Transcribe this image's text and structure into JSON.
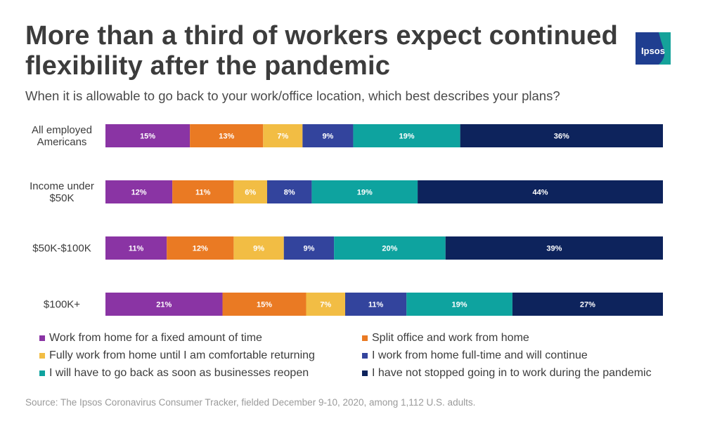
{
  "title": "More than a third of workers expect continued flexibility after the pandemic",
  "subtitle": "When it is allowable to go back to your work/office location, which best describes your plans?",
  "logo_text": "Ipsos",
  "source": "Source: The Ipsos Coronavirus Consumer Tracker, fielded December 9-10, 2020, among 1,112 U.S. adults.",
  "colors": {
    "work_fixed": "#8a34a4",
    "split": "#ea7a23",
    "fully_until": "#f2bd44",
    "fulltime_continue": "#33449d",
    "go_back": "#0ea39f",
    "not_stopped": "#0d235c",
    "logo": "#1f3e90",
    "logo_accent": "#15a29a"
  },
  "chart_data": {
    "type": "bar",
    "orientation": "horizontal",
    "stacked": true,
    "categories": [
      "All employed Americans",
      "Income under $50K",
      "$50K-$100K",
      "$100K+"
    ],
    "category_lines": [
      [
        "All employed",
        "Americans"
      ],
      [
        "Income under",
        "$50K"
      ],
      [
        "$50K-$100K"
      ],
      [
        "$100K+"
      ]
    ],
    "series": [
      {
        "name": "Work from home for a fixed amount of time",
        "color_key": "work_fixed",
        "values": [
          15,
          12,
          11,
          21
        ],
        "labels": [
          "15%",
          "12%",
          "11%",
          "21%"
        ]
      },
      {
        "name": "Split office and work from home",
        "color_key": "split",
        "values": [
          13,
          11,
          12,
          15
        ],
        "labels": [
          "13%",
          "11%",
          "12%",
          "15%"
        ]
      },
      {
        "name": "Fully work from home until I am comfortable returning",
        "color_key": "fully_until",
        "values": [
          7,
          6,
          9,
          7
        ],
        "labels": [
          "7%",
          "6%",
          "9%",
          "7%"
        ]
      },
      {
        "name": "I work from home full-time and will continue",
        "color_key": "fulltime_continue",
        "values": [
          9,
          8,
          9,
          11
        ],
        "labels": [
          "9%",
          "8%",
          "9%",
          "11%"
        ]
      },
      {
        "name": "I will have to go back as soon as businesses reopen",
        "color_key": "go_back",
        "values": [
          19,
          19,
          20,
          19
        ],
        "labels": [
          "19%",
          "19%",
          "20%",
          "19%"
        ]
      },
      {
        "name": "I have not stopped going in to work during the pandemic",
        "color_key": "not_stopped",
        "values": [
          36,
          44,
          39,
          27
        ],
        "labels": [
          "36%",
          "44%",
          "39%",
          "27%"
        ]
      }
    ],
    "legend_position": "bottom",
    "grid": false
  }
}
